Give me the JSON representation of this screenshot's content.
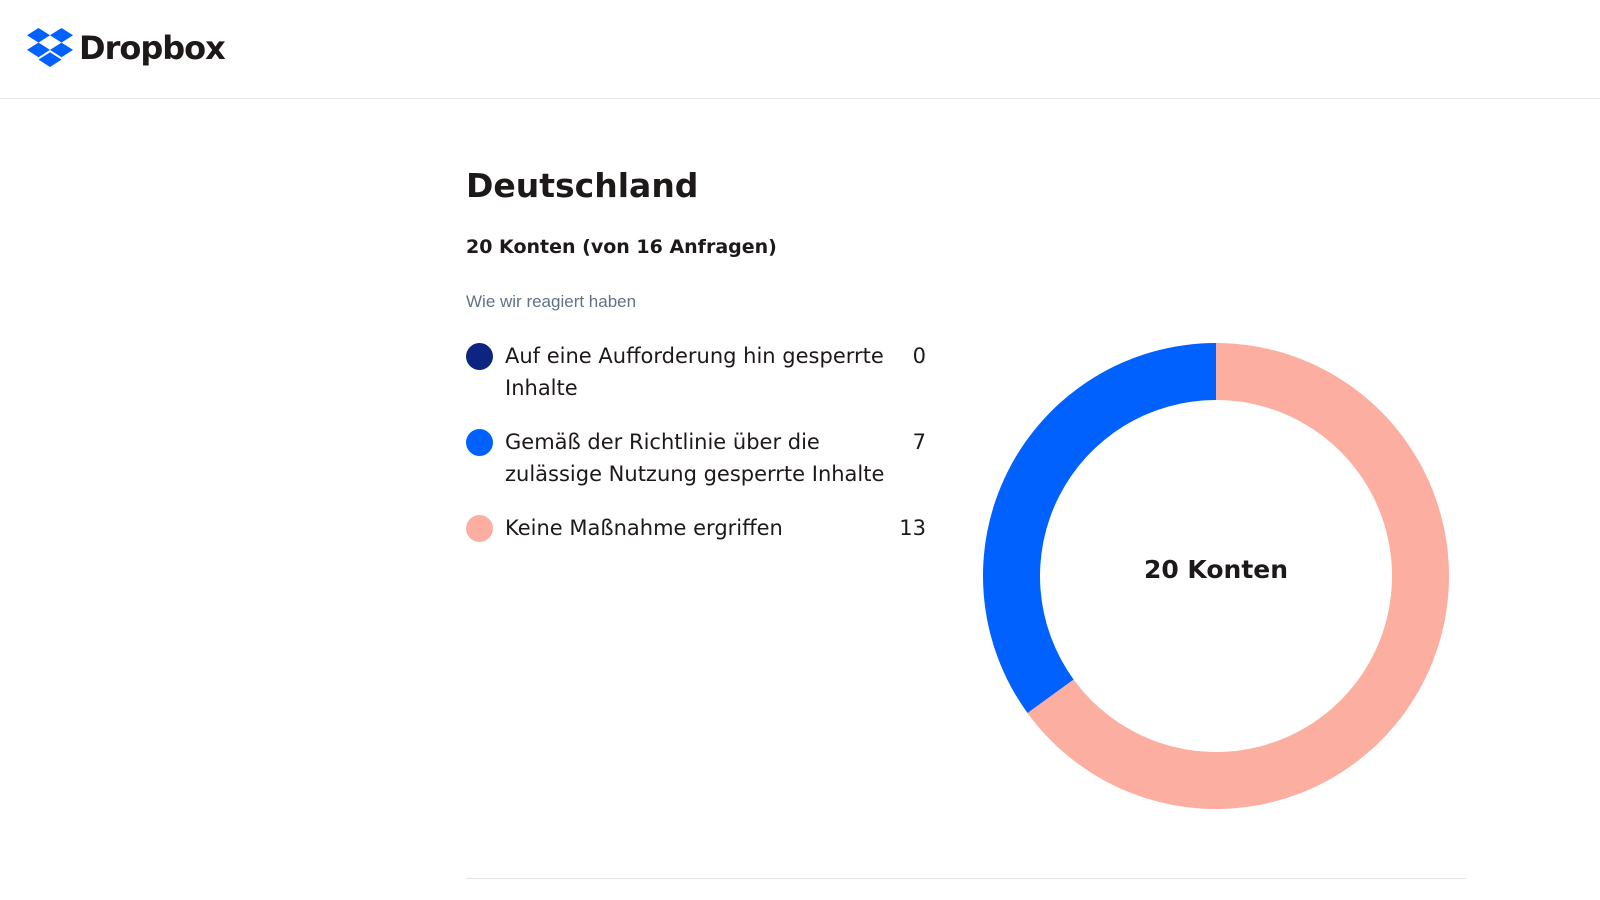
{
  "header": {
    "logo_text": "Dropbox"
  },
  "chart_data": {
    "type": "donut",
    "title": "Deutschland",
    "subtitle": "20 Konten (von 16 Anfragen)",
    "legend_title": "Wie wir reagiert haben",
    "categories": [
      "Auf eine Aufforderung hin gesperrte Inhalte",
      "Gemäß der Richtlinie über die zulässige Nutzung gesperrte Inhalte",
      "Keine Maßnahme ergriffen"
    ],
    "values": [
      0,
      7,
      13
    ],
    "colors": [
      "#0d2481",
      "#0061fe",
      "#fcafa1"
    ],
    "center_label": "20 Konten"
  }
}
